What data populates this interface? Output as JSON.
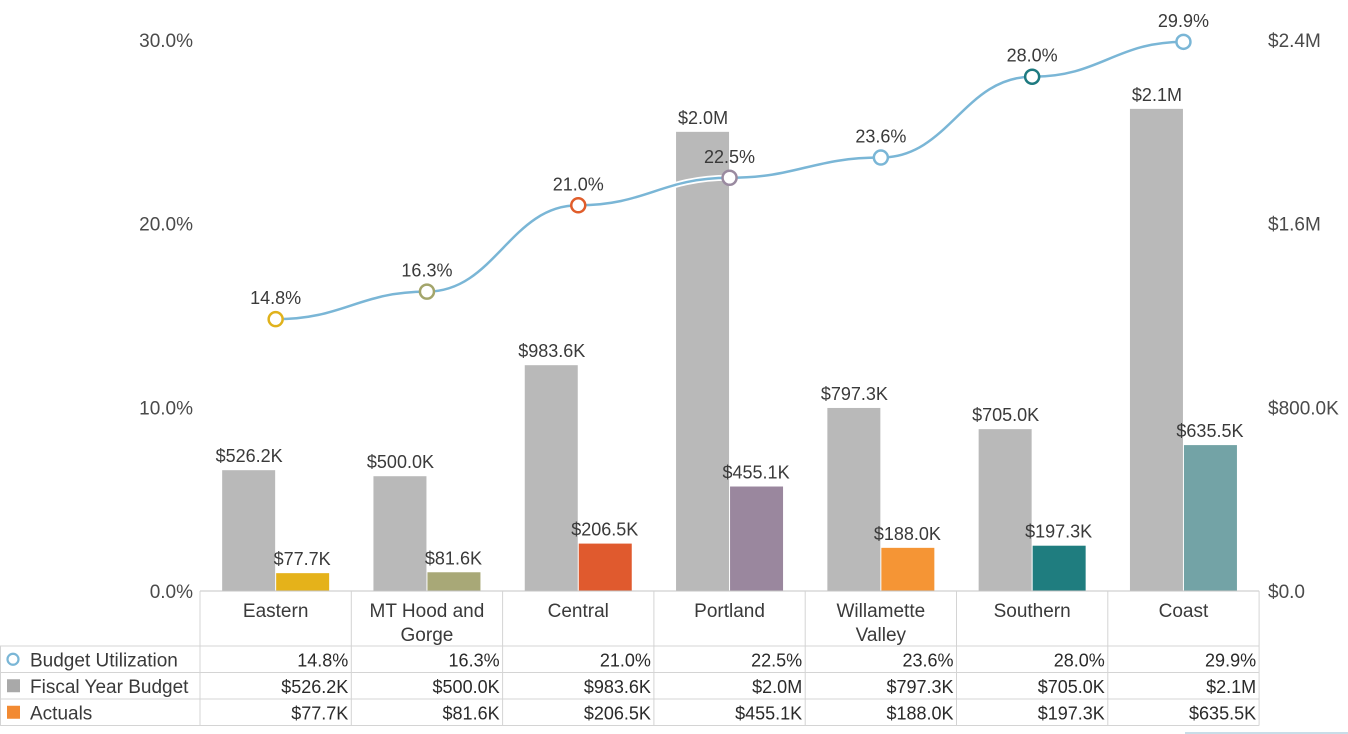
{
  "chart_data": {
    "type": "bar",
    "combo": true,
    "categories": [
      [
        "Eastern"
      ],
      [
        "MT Hood and",
        "Gorge"
      ],
      [
        "Central"
      ],
      [
        "Portland"
      ],
      [
        "Willamette",
        "Valley"
      ],
      [
        "Southern"
      ],
      [
        "Coast"
      ]
    ],
    "left_axis": {
      "ticks": [
        "0.0%",
        "10.0%",
        "20.0%",
        "30.0%"
      ],
      "tick_values": [
        0,
        10,
        20,
        30
      ],
      "ylim": [
        0,
        30
      ]
    },
    "right_axis": {
      "ticks": [
        "$0.0",
        "$800.0K",
        "$1.6M",
        "$2.4M"
      ],
      "tick_values": [
        0,
        800,
        1600,
        2400
      ],
      "ylim": [
        0,
        2400
      ],
      "unit": "thousands USD"
    },
    "series": [
      {
        "name": "Budget Utilization",
        "type": "line",
        "axis": "left",
        "values": [
          14.8,
          16.3,
          21.0,
          22.5,
          23.6,
          28.0,
          29.9
        ],
        "labels": [
          "14.8%",
          "16.3%",
          "21.0%",
          "22.5%",
          "23.6%",
          "28.0%",
          "29.9%"
        ],
        "color": "#7ab6d6",
        "marker_colors": [
          "#e0b21c",
          "#a3a56b",
          "#e05d2b",
          "#9a8aa0",
          "#7ab6d6",
          "#1e7a80",
          "#7ab6d6"
        ]
      },
      {
        "name": "Fiscal Year Budget",
        "type": "bar",
        "axis": "right",
        "values": [
          526.2,
          500.0,
          983.6,
          2000,
          797.3,
          705.0,
          2100
        ],
        "labels": [
          "$526.2K",
          "$500.0K",
          "$983.6K",
          "$2.0M",
          "$797.3K",
          "$705.0K",
          "$2.1M"
        ],
        "color": "#b9b9b9"
      },
      {
        "name": "Actuals",
        "type": "bar",
        "axis": "right",
        "values": [
          77.7,
          81.6,
          206.5,
          455.1,
          188.0,
          197.3,
          635.5
        ],
        "labels": [
          "$77.7K",
          "$81.6K",
          "$206.5K",
          "$455.1K",
          "$188.0K",
          "$197.3K",
          "$635.5K"
        ],
        "colors": [
          "#e5b21a",
          "#a8a877",
          "#e05a2e",
          "#9a879e",
          "#f59535",
          "#1f7d7f",
          "#73a3a6"
        ],
        "legend_color": "#f28a32"
      }
    ],
    "legend_icon_colors": {
      "line": "#7ab6d6",
      "budget": "#a9a9a9",
      "actuals": "#f28a32"
    }
  }
}
